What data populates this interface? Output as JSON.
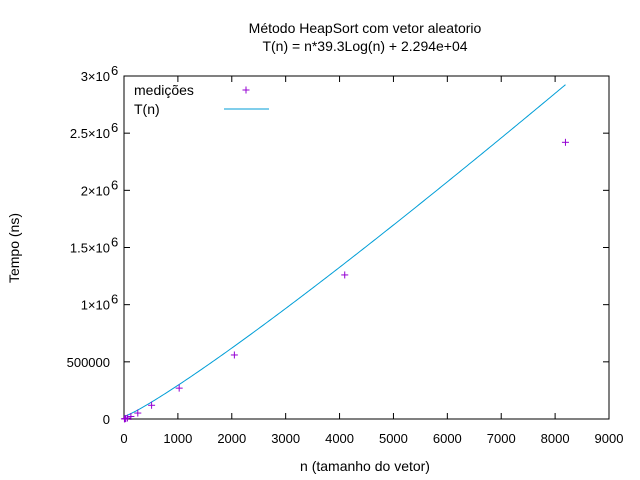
{
  "chart_data": {
    "type": "scatter",
    "title": "Método HeapSort com vetor aleatorio",
    "subtitle": "T(n) = n*39.3Log(n) + 2.294e+04",
    "xlabel": "n (tamanho do vetor)",
    "ylabel": "Tempo (ns)",
    "xlim": [
      0,
      9000
    ],
    "ylim": [
      0,
      3000000
    ],
    "x_ticks": [
      {
        "value": 0,
        "label": "0"
      },
      {
        "value": 1000,
        "label": "1000"
      },
      {
        "value": 2000,
        "label": "2000"
      },
      {
        "value": 3000,
        "label": "3000"
      },
      {
        "value": 4000,
        "label": "4000"
      },
      {
        "value": 5000,
        "label": "5000"
      },
      {
        "value": 6000,
        "label": "6000"
      },
      {
        "value": 7000,
        "label": "7000"
      },
      {
        "value": 8000,
        "label": "8000"
      },
      {
        "value": 9000,
        "label": "9000"
      }
    ],
    "y_ticks": [
      {
        "value": 0,
        "label": "0",
        "exp": ""
      },
      {
        "value": 500000,
        "label": "500000",
        "exp": ""
      },
      {
        "value": 1000000,
        "label": "1×10",
        "exp": "6"
      },
      {
        "value": 1500000,
        "label": "1.5×10",
        "exp": "6"
      },
      {
        "value": 2000000,
        "label": "2×10",
        "exp": "6"
      },
      {
        "value": 2500000,
        "label": "2.5×10",
        "exp": "6"
      },
      {
        "value": 3000000,
        "label": "3×10",
        "exp": "6"
      }
    ],
    "grid": false,
    "legend_position": "top-left",
    "series": [
      {
        "name": "medições",
        "kind": "points",
        "marker": "+",
        "color": "#9400d3",
        "x": [
          8,
          16,
          32,
          64,
          128,
          256,
          512,
          1024,
          2048,
          4096,
          8192
        ],
        "y": [
          1000,
          2000,
          4000,
          9000,
          22000,
          52000,
          120000,
          270000,
          560000,
          1260000,
          2420000
        ]
      },
      {
        "name": "T(n)",
        "kind": "line",
        "color": "#009ed7",
        "formula": "n*39.3*ln(n) + 22940",
        "coef": 39.3,
        "const": 22940,
        "x_range": [
          1,
          8192
        ]
      }
    ]
  }
}
